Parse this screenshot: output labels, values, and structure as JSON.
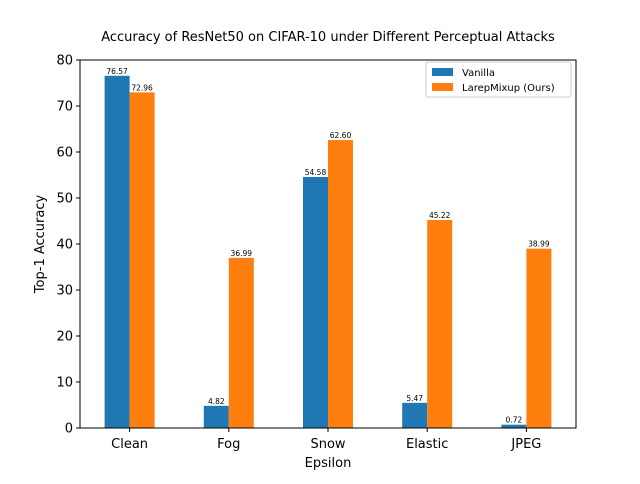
{
  "chart_data": {
    "type": "bar",
    "title": "Accuracy of ResNet50 on CIFAR-10 under Different Perceptual Attacks",
    "xlabel": "Epsilon",
    "ylabel": "Top-1 Accuracy",
    "ylim": [
      0,
      80
    ],
    "yticks": [
      0,
      10,
      20,
      30,
      40,
      50,
      60,
      70,
      80
    ],
    "categories": [
      "Clean",
      "Fog",
      "Snow",
      "Elastic",
      "JPEG"
    ],
    "series": [
      {
        "name": "Vanilla",
        "color": "#1f77b4",
        "values": [
          76.57,
          4.82,
          54.58,
          5.47,
          0.72
        ],
        "labels": [
          "76.57",
          "4.82",
          "54.58",
          "5.47",
          "0.72"
        ]
      },
      {
        "name": "LarepMixup (Ours)",
        "color": "#ff7f0e",
        "values": [
          72.96,
          36.99,
          62.6,
          45.22,
          38.99
        ],
        "labels": [
          "72.96",
          "36.99",
          "62.60",
          "45.22",
          "38.99"
        ]
      }
    ],
    "legend_position": "top-right",
    "grid": false
  }
}
